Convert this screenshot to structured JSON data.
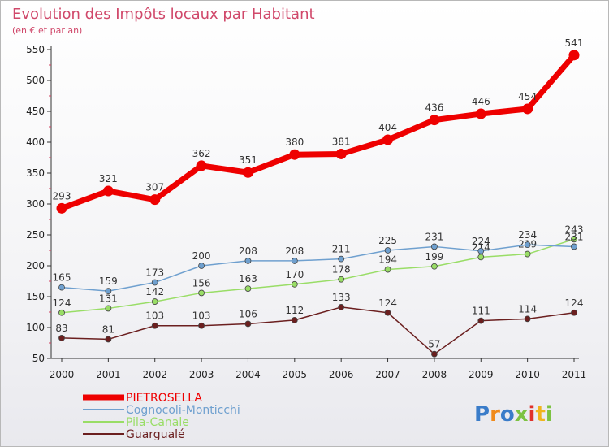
{
  "chart_data": {
    "type": "line",
    "title": "Evolution des Impôts locaux par Habitant",
    "subtitle": "(en € et par an)",
    "xlabel": "",
    "ylabel": "",
    "categories": [
      "2000",
      "2001",
      "2002",
      "2003",
      "2004",
      "2005",
      "2006",
      "2007",
      "2008",
      "2009",
      "2010",
      "2011"
    ],
    "ylim": [
      50,
      550
    ],
    "yticks": [
      50,
      100,
      150,
      200,
      250,
      300,
      350,
      400,
      450,
      500,
      550
    ],
    "grid": false,
    "legend_position": "bottom-left",
    "series": [
      {
        "name": "PIETROSELLA",
        "color": "#ee0000",
        "values": [
          293,
          321,
          307,
          362,
          351,
          380,
          381,
          404,
          436,
          446,
          454,
          541
        ]
      },
      {
        "name": "Cognocoli-Monticchi",
        "color": "#6fa0cf",
        "values": [
          165,
          159,
          173,
          200,
          208,
          208,
          211,
          225,
          231,
          224,
          234,
          231
        ]
      },
      {
        "name": "Pila-Canale",
        "color": "#99dd66",
        "values": [
          124,
          131,
          142,
          156,
          163,
          170,
          178,
          194,
          199,
          214,
          219,
          243
        ]
      },
      {
        "name": "Guargualé",
        "color": "#6b1f1f",
        "values": [
          83,
          81,
          103,
          103,
          106,
          112,
          133,
          124,
          57,
          111,
          114,
          124
        ]
      }
    ]
  },
  "logo": {
    "text": "Proxiti",
    "letter_colors": [
      "#3a7cc9",
      "#f08a1c",
      "#3a7cc9",
      "#7cc242",
      "#e0312a",
      "#f0b41c",
      "#7cc242"
    ]
  }
}
